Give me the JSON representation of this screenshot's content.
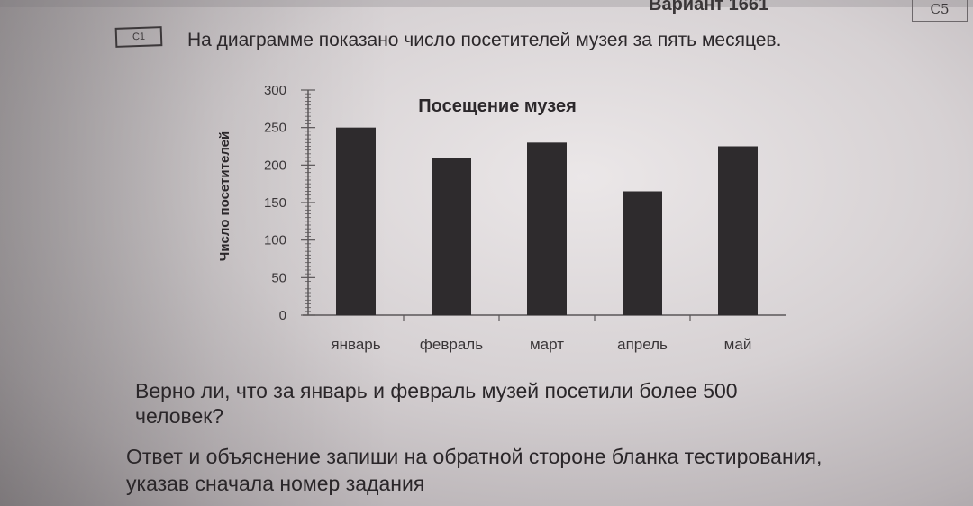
{
  "header": {
    "variant_fragment": "Вариант 1661",
    "corner_label": "С5",
    "task_label": "С1"
  },
  "intro_text": "На диаграмме  показано число посетителей музея за пять месяцев.",
  "question_text": "Верно ли, что за январь и февраль музей посетили более 500 человек?",
  "instruction_text": "Ответ и объяснение запиши на обратной стороне бланка тестирования, указав сначала номер задания",
  "colors": {
    "bar": "#2e2b2d",
    "axis": "#5a5658",
    "text": "#3a3638"
  },
  "chart_data": {
    "type": "bar",
    "title": "Посещение музея",
    "ylabel": "Число посетителей",
    "xlabel": "",
    "categories": [
      "январь",
      "февраль",
      "март",
      "апрель",
      "май"
    ],
    "values": [
      250,
      210,
      230,
      165,
      225
    ],
    "ylim": [
      0,
      300
    ],
    "yticks": [
      "0",
      "50",
      "100",
      "150",
      "200",
      "250",
      "300"
    ],
    "grid": false,
    "legend": "none"
  }
}
